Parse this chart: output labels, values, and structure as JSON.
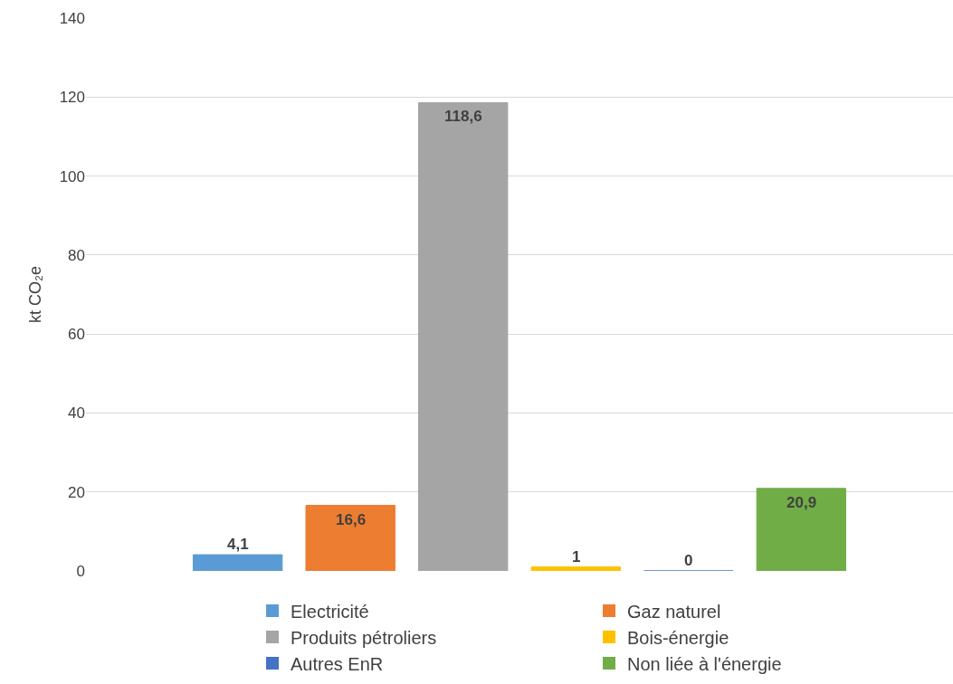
{
  "chart_data": {
    "type": "bar",
    "ylabel": "kt CO₂e",
    "categories": [
      null
    ],
    "ylim": [
      0,
      140
    ],
    "yticks": [
      0,
      20,
      40,
      60,
      80,
      100,
      120,
      140
    ],
    "grid": "y",
    "legend": "bottom",
    "tick_labels": "y",
    "series": [
      {
        "name": "Electricité",
        "color": "#5b9bd5",
        "values": [
          4.1
        ],
        "value_labels": [
          "4,1"
        ]
      },
      {
        "name": "Gaz naturel",
        "color": "#ed7d31",
        "values": [
          16.6
        ],
        "value_labels": [
          "16,6"
        ]
      },
      {
        "name": "Produits pétroliers",
        "color": "#a5a5a5",
        "values": [
          118.6
        ],
        "value_labels": [
          "118,6"
        ]
      },
      {
        "name": "Bois-énergie",
        "color": "#ffc000",
        "values": [
          1
        ],
        "value_labels": [
          "1"
        ]
      },
      {
        "name": "Autres EnR",
        "color": "#4472c4",
        "values": [
          0
        ],
        "value_labels": [
          "0"
        ]
      },
      {
        "name": "Non liée à l'énergie",
        "color": "#70ad47",
        "values": [
          20.9
        ],
        "value_labels": [
          "20,9"
        ]
      }
    ]
  }
}
